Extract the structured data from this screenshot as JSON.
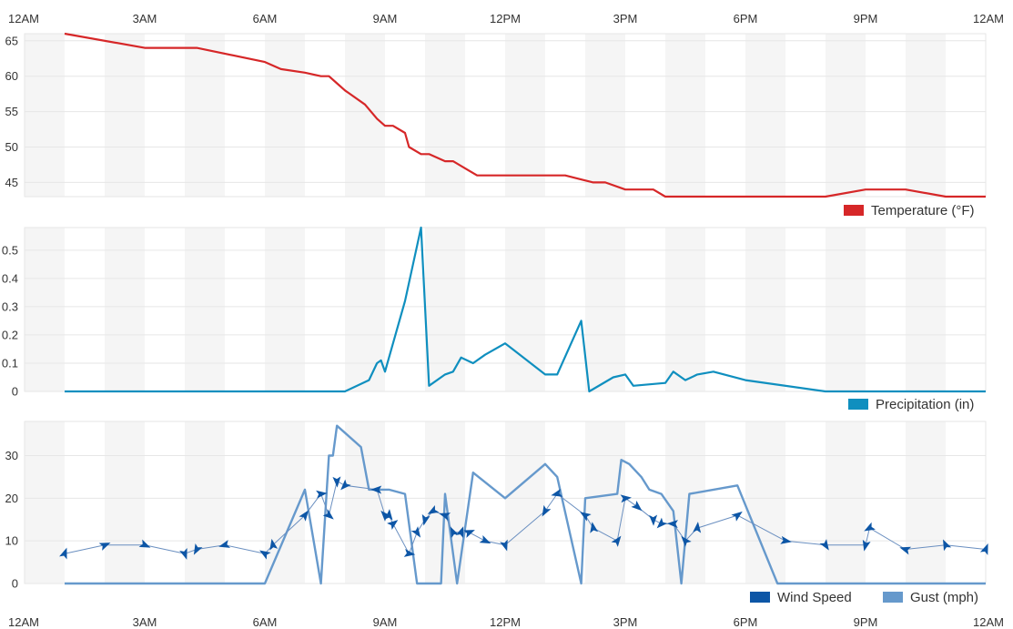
{
  "chart_data": {
    "type": "line",
    "x_axis": {
      "ticks": [
        "12AM",
        "3AM",
        "6AM",
        "9AM",
        "12PM",
        "3PM",
        "6PM",
        "9PM",
        "12AM"
      ],
      "tick_hours": [
        0,
        3,
        6,
        9,
        12,
        15,
        18,
        21,
        24
      ],
      "range_hours": [
        0,
        24
      ]
    },
    "colors": {
      "temperature": "#d62728",
      "precipitation": "#0f8fbf",
      "wind_speed": "#0d56a6",
      "gust": "#6699cc",
      "band": "#f5f5f5",
      "grid": "#e6e6e6"
    },
    "panels": [
      {
        "id": "temperature",
        "type": "line",
        "ylim": [
          43,
          66
        ],
        "yticks": [
          45,
          50,
          55,
          60,
          65
        ],
        "legend": [
          "Temperature (°F)"
        ],
        "series": [
          {
            "name": "Temperature (°F)",
            "hours": [
              1,
              3,
              4.3,
              6,
              6.4,
              7,
              7.4,
              7.6,
              7.8,
              8,
              8.5,
              8.8,
              9,
              9.2,
              9.5,
              9.6,
              9.9,
              10.1,
              10.5,
              10.7,
              11,
              11.3,
              12,
              13,
              13.5,
              14.2,
              14.5,
              15,
              15.2,
              15.7,
              16,
              17,
              18,
              19,
              20,
              21,
              22,
              23,
              24
            ],
            "values": [
              66,
              64,
              64,
              62,
              61,
              60.5,
              60,
              60,
              59,
              58,
              56,
              54,
              53,
              53,
              52,
              50,
              49,
              49,
              48,
              48,
              47,
              46,
              46,
              46,
              46,
              45,
              45,
              44,
              44,
              44,
              43,
              43,
              43,
              43,
              43,
              44,
              44,
              43,
              43
            ]
          }
        ]
      },
      {
        "id": "precipitation",
        "type": "area",
        "ylim": [
          0,
          0.58
        ],
        "yticks": [
          0,
          0.1,
          0.2,
          0.3,
          0.4,
          0.5
        ],
        "ytick_labels": [
          "0",
          "0.1",
          "0.2",
          "0.3",
          "0.4",
          "0.5"
        ],
        "legend": [
          "Precipitation (in)"
        ],
        "series": [
          {
            "name": "Precipitation (in)",
            "hours": [
              1,
              6,
              7.3,
              8,
              8.6,
              8.8,
              8.9,
              9,
              9.5,
              9.7,
              9.9,
              10.1,
              10.5,
              10.7,
              10.9,
              11.2,
              11.5,
              12,
              13,
              13.3,
              13.9,
              14.1,
              14.7,
              15,
              15.2,
              16,
              16.2,
              16.5,
              16.8,
              17.2,
              18,
              20,
              23,
              24
            ],
            "values": [
              0,
              0,
              0,
              0,
              0.04,
              0.1,
              0.11,
              0.07,
              0.32,
              0.45,
              0.58,
              0.02,
              0.06,
              0.07,
              0.12,
              0.1,
              0.13,
              0.17,
              0.06,
              0.06,
              0.25,
              0,
              0.05,
              0.06,
              0.02,
              0.03,
              0.07,
              0.04,
              0.06,
              0.07,
              0.04,
              0,
              0,
              0
            ]
          }
        ]
      },
      {
        "id": "wind",
        "type": "line",
        "ylim": [
          0,
          38
        ],
        "yticks": [
          0,
          10,
          20,
          30
        ],
        "legend": [
          "Wind Speed",
          "Gust (mph)"
        ],
        "series": [
          {
            "name": "Gust (mph)",
            "hours": [
              1,
              6,
              7,
              7.4,
              7.6,
              7.7,
              7.8,
              8.4,
              8.6,
              8.9,
              9.1,
              9.5,
              9.8,
              10.4,
              10.5,
              10.8,
              11.2,
              12,
              13,
              13.3,
              13.9,
              14,
              14.8,
              14.9,
              15.1,
              15.4,
              15.6,
              15.9,
              16.2,
              16.4,
              16.6,
              17.8,
              18.8,
              24
            ],
            "values": [
              0,
              0,
              22,
              0,
              30,
              30,
              37,
              32,
              22,
              22,
              22,
              21,
              0,
              0,
              21,
              0,
              26,
              20,
              28,
              25,
              0,
              20,
              21,
              29,
              28,
              25,
              22,
              21,
              17,
              0,
              21,
              23,
              0,
              0
            ]
          },
          {
            "name": "Wind Speed",
            "hours": [
              1,
              2,
              3,
              4,
              4.3,
              5,
              6,
              6.2,
              7,
              7.4,
              7.6,
              7.8,
              8,
              8.8,
              9,
              9.1,
              9.2,
              9.6,
              9.8,
              10,
              10.2,
              10.5,
              10.7,
              10.9,
              11.1,
              11.5,
              12,
              13,
              13.3,
              14,
              14.2,
              14.8,
              15,
              15.3,
              15.7,
              15.9,
              16.2,
              16.5,
              16.8,
              17.8,
              19,
              20,
              21,
              21.1,
              22,
              23,
              24
            ],
            "values": [
              7,
              9,
              9,
              7,
              8,
              9,
              7,
              9,
              16,
              21,
              16,
              24,
              23,
              22,
              16,
              16,
              14,
              7,
              12,
              15,
              17,
              16,
              12,
              12,
              12,
              10,
              9,
              17,
              21,
              16,
              13,
              10,
              20,
              18,
              15,
              14,
              14,
              10,
              13,
              16,
              10,
              9,
              9,
              13,
              8,
              9,
              8
            ]
          }
        ]
      }
    ]
  }
}
